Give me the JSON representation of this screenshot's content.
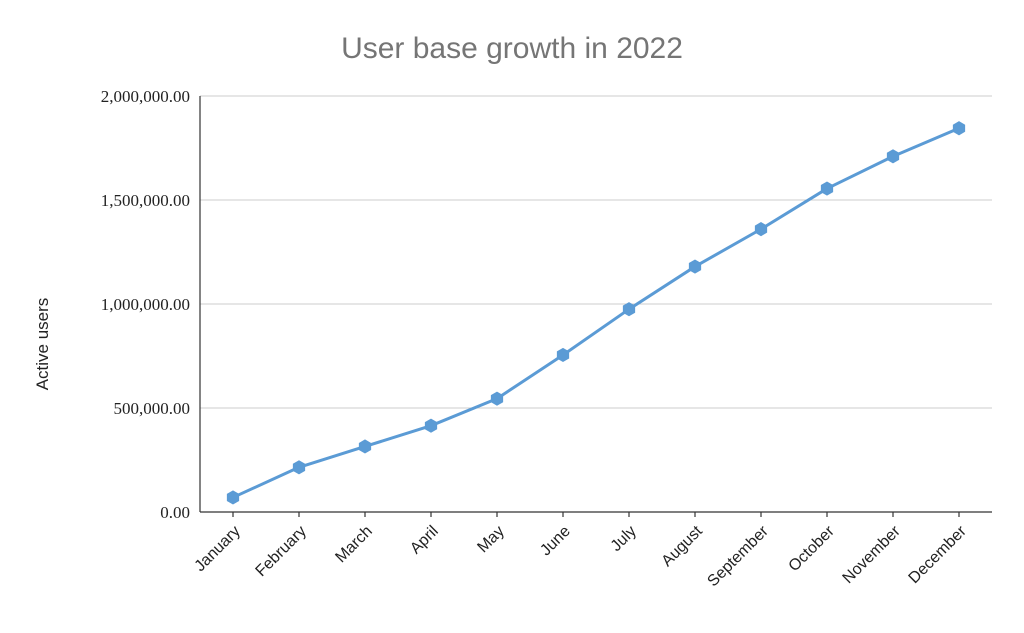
{
  "chart_data": {
    "type": "line",
    "title": "User base growth in 2022",
    "xlabel": "",
    "ylabel": "Active users",
    "categories": [
      "January",
      "February",
      "March",
      "April",
      "May",
      "June",
      "July",
      "August",
      "September",
      "October",
      "November",
      "December"
    ],
    "series": [
      {
        "values": [
          70000,
          215000,
          315000,
          415000,
          545000,
          755000,
          975000,
          1180000,
          1360000,
          1555000,
          1710000,
          1845000
        ]
      }
    ],
    "ylim": [
      0,
      2000000
    ],
    "yticks": [
      0,
      500000,
      1000000,
      1500000,
      2000000
    ],
    "ytick_labels": [
      "0.00",
      "500,000.00",
      "1,000,000.00",
      "1,500,000.00",
      "2,000,000.00"
    ],
    "grid": true,
    "line_color": "#5b9bd5",
    "marker": "hexagon"
  }
}
